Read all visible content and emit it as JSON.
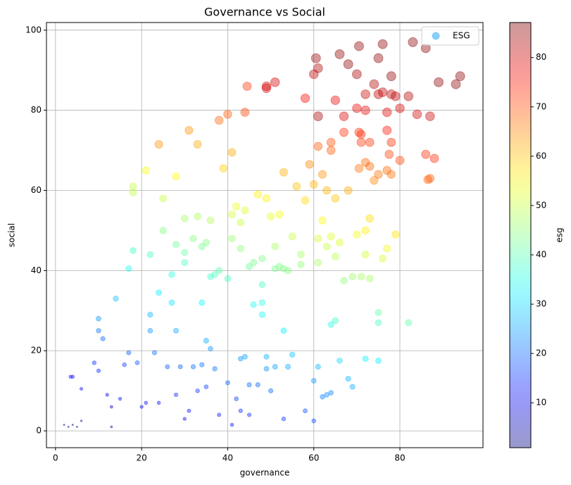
{
  "chart_data": {
    "type": "scatter",
    "title": "Governance vs Social",
    "x_label": "governance",
    "y_label": "social",
    "colorbar_label": "esg",
    "colormap": "jet",
    "alpha": 0.4,
    "grid": true,
    "legend": "upper right",
    "legend_color": "#87cefa",
    "xlim": [
      -2.1,
      99.3
    ],
    "ylim": [
      -4.2,
      101.9
    ],
    "xticks": [
      0,
      20,
      40,
      60,
      80
    ],
    "yticks": [
      0,
      20,
      40,
      60,
      80,
      100
    ],
    "clim": [
      0.9,
      87.1
    ],
    "cticks": [
      10,
      20,
      30,
      40,
      50,
      60,
      70,
      80
    ],
    "series": [
      {
        "name": "ESG",
        "x": [
          2,
          3,
          4,
          5,
          6,
          3.5,
          4,
          6,
          9,
          10,
          10,
          11,
          10,
          12,
          13,
          14,
          13,
          15,
          17,
          16,
          19,
          20,
          21,
          22,
          22,
          23,
          24,
          24,
          26,
          27,
          28,
          28,
          29,
          30,
          31,
          32,
          33,
          34,
          34,
          35,
          35,
          36,
          37,
          38,
          40,
          41,
          42,
          43,
          44,
          43,
          45,
          45,
          47,
          48,
          49,
          50,
          51,
          53,
          53,
          55,
          58,
          60,
          60,
          61,
          62,
          63,
          64,
          64,
          65,
          66,
          68,
          69,
          72,
          75,
          49,
          17,
          18,
          18,
          18,
          21,
          22,
          25,
          25,
          27,
          28,
          28,
          30,
          30,
          31,
          32,
          33,
          33,
          34,
          35,
          36,
          37,
          38,
          39,
          40,
          41,
          41,
          42,
          43,
          43,
          44,
          45,
          46,
          47,
          48,
          48,
          49,
          50,
          51,
          51,
          52,
          53,
          54,
          55,
          56,
          57,
          57,
          58,
          59,
          60,
          61,
          61,
          62,
          62,
          63,
          63,
          64,
          65,
          65,
          66,
          67,
          68,
          69,
          70,
          71,
          72,
          72,
          73,
          73,
          74,
          75,
          76,
          77,
          77,
          79,
          75,
          75,
          82,
          44.5,
          49,
          49,
          51,
          44,
          40,
          24,
          53,
          58,
          60,
          60.5,
          61,
          61,
          61,
          64,
          64,
          65,
          66,
          67,
          67,
          68,
          70,
          70,
          70.5,
          70.5,
          70.5,
          71,
          71,
          72,
          72,
          72,
          73,
          73,
          74,
          75,
          75,
          76,
          76,
          77,
          77,
          77.5,
          78,
          78,
          78,
          78,
          79,
          80,
          80,
          82,
          83,
          84,
          86,
          86,
          87,
          87,
          88,
          89,
          93,
          94,
          86.5,
          36,
          38,
          30,
          41,
          48,
          46,
          52,
          54
        ],
        "values": [
          1.5,
          1,
          1.5,
          1,
          2.5,
          13.5,
          13.5,
          10.5,
          17,
          25,
          28,
          23,
          15,
          9,
          1,
          33,
          6,
          8,
          19.5,
          16.5,
          17,
          6,
          7,
          29,
          25,
          19.5,
          34.5,
          7,
          16,
          32,
          25,
          9,
          16,
          3,
          5,
          16,
          10,
          32,
          16.5,
          11,
          22.5,
          20.5,
          15.5,
          4,
          12,
          1.5,
          8,
          18,
          18.5,
          5,
          4,
          11.5,
          11.5,
          29,
          18.5,
          10,
          16,
          25,
          3,
          19,
          5,
          12.5,
          2.5,
          16,
          8.5,
          9,
          9.5,
          26.5,
          27.5,
          17.5,
          13,
          11,
          18,
          17.5,
          15.5,
          40.5,
          59.5,
          61,
          45,
          65,
          44,
          58,
          50,
          39,
          63.5,
          46.5,
          53,
          44.5,
          75,
          48,
          53.5,
          71.5,
          46,
          47,
          52.5,
          39,
          77.5,
          65.5,
          38,
          69.5,
          54,
          56,
          52,
          45.5,
          55,
          41,
          42,
          59,
          43,
          36.5,
          58,
          53.5,
          40.5,
          46,
          54,
          40.5,
          40,
          48.5,
          61,
          44,
          41.5,
          57.5,
          66.5,
          61.5,
          48,
          42,
          64,
          52.5,
          60,
          46,
          48.5,
          43.5,
          58,
          47,
          37.5,
          60,
          38.5,
          49,
          38.5,
          50,
          44,
          53,
          38,
          62.5,
          64,
          43,
          65,
          45.5,
          49,
          29.5,
          27,
          27,
          86,
          86,
          85.5,
          87,
          79.5,
          79,
          71.5,
          64.5,
          83,
          89,
          93,
          90.5,
          78.5,
          71,
          72,
          70,
          82.5,
          94,
          78.5,
          74.5,
          91.5,
          80.5,
          89,
          96,
          74.5,
          65.5,
          74,
          72,
          84,
          80,
          67,
          72,
          66,
          86.5,
          84,
          93,
          96.5,
          84.5,
          79.5,
          75,
          69,
          88.5,
          84,
          72,
          64,
          83.5,
          67.5,
          80.5,
          83.5,
          97,
          79,
          95.5,
          69,
          78.5,
          63,
          68,
          87,
          86.5,
          88.5,
          62.7,
          38.5,
          40,
          42,
          48,
          32,
          31.5,
          41,
          16
        ],
        "sizes": [
          2,
          2,
          2,
          2,
          3,
          11,
          11,
          9,
          15,
          21,
          24,
          20,
          14,
          10,
          4,
          28,
          8,
          10,
          19,
          16,
          18,
          10,
          11,
          27,
          24,
          20,
          32,
          11,
          19,
          31,
          26,
          14,
          19,
          10,
          12,
          20,
          16,
          33,
          21,
          17,
          26,
          24,
          21,
          13,
          19,
          11,
          17,
          24,
          25,
          15,
          14,
          20,
          20,
          34,
          26,
          20,
          25,
          32,
          16,
          28,
          18,
          24,
          17,
          27,
          22,
          23,
          23,
          36,
          37,
          30,
          27,
          26,
          32,
          32,
          24,
          35,
          49,
          50,
          38,
          54,
          39,
          50,
          44,
          36,
          55,
          42,
          47,
          41,
          64,
          44,
          48,
          62,
          43,
          44,
          48,
          39,
          68,
          59,
          39,
          62,
          51,
          53,
          50,
          45,
          52,
          42,
          43,
          56,
          44,
          39,
          56,
          53,
          43,
          47,
          54,
          44,
          44,
          50,
          60,
          47,
          45,
          58,
          65,
          61,
          51,
          47,
          64,
          55,
          61,
          50,
          52,
          49,
          60,
          52,
          45,
          62,
          46,
          54,
          47,
          56,
          51,
          58,
          47,
          65,
          67,
          51,
          68,
          53,
          57,
          41,
          39,
          41,
          72,
          80,
          80,
          80,
          71,
          69,
          64,
          62,
          77,
          82,
          85,
          83,
          84,
          69,
          70,
          69,
          78,
          86,
          80,
          73,
          86,
          78,
          84,
          86,
          73,
          67,
          73,
          72,
          81,
          78,
          68,
          72,
          68,
          83,
          82,
          86,
          86,
          82,
          79,
          75,
          71,
          86,
          82,
          73,
          67,
          82,
          71,
          80,
          83,
          86,
          80,
          86,
          73,
          81,
          69,
          73,
          86,
          86,
          86,
          69,
          38,
          40,
          39,
          46,
          36,
          35,
          44,
          26
        ]
      }
    ]
  }
}
